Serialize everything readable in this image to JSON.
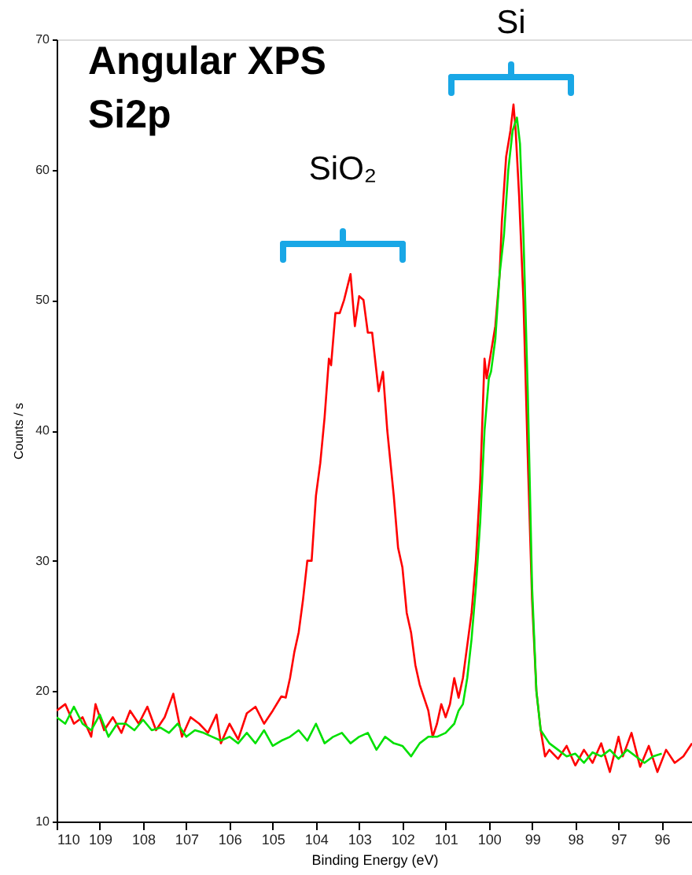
{
  "chart_data": {
    "type": "line",
    "title": "Angular XPS\nSi2p",
    "xlabel": "Binding Energy (eV)",
    "ylabel": "Counts / s",
    "xlim": [
      110,
      95.3
    ],
    "xticks": [
      110,
      109,
      108,
      107,
      106,
      105,
      104,
      103,
      102,
      101,
      100,
      99,
      98,
      97,
      96
    ],
    "ylim": [
      10,
      70
    ],
    "yticks": [
      10,
      20,
      30,
      40,
      50,
      60,
      70
    ],
    "grid": false,
    "annotations": [
      "SiO₂",
      "Si"
    ],
    "series": [
      {
        "color": "#ff0000",
        "x": [
          110,
          109.8,
          109.6,
          109.4,
          109.2,
          109.1,
          108.9,
          108.7,
          108.5,
          108.3,
          108.1,
          107.9,
          107.7,
          107.5,
          107.3,
          107.1,
          106.9,
          106.7,
          106.5,
          106.3,
          106.2,
          106.0,
          105.8,
          105.6,
          105.4,
          105.2,
          105.0,
          104.8,
          104.7,
          104.6,
          104.5,
          104.4,
          104.3,
          104.2,
          104.1,
          104.0,
          103.9,
          103.8,
          103.7,
          103.65,
          103.55,
          103.45,
          103.35,
          103.2,
          103.1,
          103.0,
          102.9,
          102.8,
          102.7,
          102.55,
          102.45,
          102.35,
          102.2,
          102.1,
          102.0,
          101.9,
          101.8,
          101.7,
          101.6,
          101.5,
          101.4,
          101.3,
          101.2,
          101.1,
          101.0,
          100.9,
          100.8,
          100.7,
          100.6,
          100.5,
          100.4,
          100.3,
          100.2,
          100.1,
          100.05,
          99.95,
          99.85,
          99.75,
          99.7,
          99.6,
          99.5,
          99.43,
          99.38,
          99.3,
          99.2,
          99.1,
          99.0,
          98.9,
          98.8,
          98.7,
          98.6,
          98.4,
          98.2,
          98.0,
          97.8,
          97.6,
          97.4,
          97.2,
          97.0,
          96.9,
          96.7,
          96.5,
          96.3,
          96.1,
          95.9,
          95.7,
          95.5,
          95.3
        ],
        "values": [
          18.5,
          19,
          17.5,
          18,
          16.5,
          19,
          17,
          18,
          16.8,
          18.5,
          17.5,
          18.8,
          17,
          18,
          19.8,
          16.5,
          18,
          17.5,
          16.8,
          18.2,
          16,
          17.5,
          16.3,
          18.3,
          18.8,
          17.5,
          18.5,
          19.6,
          19.5,
          21,
          23,
          24.5,
          27,
          30,
          30,
          35,
          37.5,
          41,
          45.5,
          45,
          49,
          49,
          50,
          52,
          48,
          50.3,
          50,
          47.5,
          47.5,
          43,
          44.5,
          40,
          35,
          31,
          29.5,
          26,
          24.5,
          22,
          20.5,
          19.5,
          18.5,
          16.5,
          17.5,
          19,
          18,
          19,
          21,
          19.5,
          21,
          23.5,
          26,
          30,
          36,
          45.5,
          44,
          46,
          48,
          52,
          56,
          61,
          63,
          65,
          63,
          58,
          50,
          38,
          27,
          20,
          17,
          15,
          15.5,
          14.8,
          15.8,
          14.3,
          15.5,
          14.5,
          16,
          13.8,
          16.5,
          15,
          16.8,
          14.2,
          15.8,
          13.8,
          15.5,
          14.5,
          15,
          16
        ]
      },
      {
        "color": "#00e000",
        "x": [
          110,
          109.8,
          109.6,
          109.4,
          109.2,
          109.0,
          108.8,
          108.6,
          108.4,
          108.2,
          108.0,
          107.8,
          107.6,
          107.4,
          107.2,
          107.0,
          106.8,
          106.6,
          106.4,
          106.2,
          106.0,
          105.8,
          105.6,
          105.4,
          105.2,
          105.0,
          104.8,
          104.6,
          104.4,
          104.2,
          104.0,
          103.8,
          103.6,
          103.4,
          103.2,
          103.0,
          102.8,
          102.6,
          102.4,
          102.2,
          102.0,
          101.8,
          101.6,
          101.4,
          101.2,
          101.0,
          100.8,
          100.7,
          100.6,
          100.5,
          100.4,
          100.3,
          100.2,
          100.1,
          100.0,
          99.95,
          99.85,
          99.75,
          99.65,
          99.55,
          99.45,
          99.35,
          99.28,
          99.2,
          99.1,
          99.0,
          98.9,
          98.8,
          98.6,
          98.4,
          98.2,
          98.0,
          97.8,
          97.6,
          97.4,
          97.2,
          97.0,
          96.8,
          96.6,
          96.4,
          96.2,
          96.0
        ],
        "values": [
          18,
          17.5,
          18.8,
          17.5,
          17,
          18.2,
          16.5,
          17.5,
          17.5,
          17,
          17.8,
          17,
          17.2,
          16.8,
          17.5,
          16.5,
          17,
          16.8,
          16.5,
          16.2,
          16.5,
          16,
          16.8,
          16,
          17,
          15.8,
          16.2,
          16.5,
          17,
          16.2,
          17.5,
          16,
          16.5,
          16.8,
          16,
          16.5,
          16.8,
          15.5,
          16.5,
          16,
          15.8,
          15,
          16,
          16.5,
          16.5,
          16.8,
          17.5,
          18.5,
          19,
          21,
          24,
          28,
          33,
          40,
          44,
          44.5,
          47,
          52,
          55,
          60,
          63,
          64,
          62,
          55,
          43,
          28,
          20,
          17,
          16,
          15.5,
          15,
          15.2,
          14.5,
          15.3,
          15,
          15.5,
          14.8,
          15.5,
          15,
          14.5,
          15,
          15.2
        ]
      }
    ]
  }
}
